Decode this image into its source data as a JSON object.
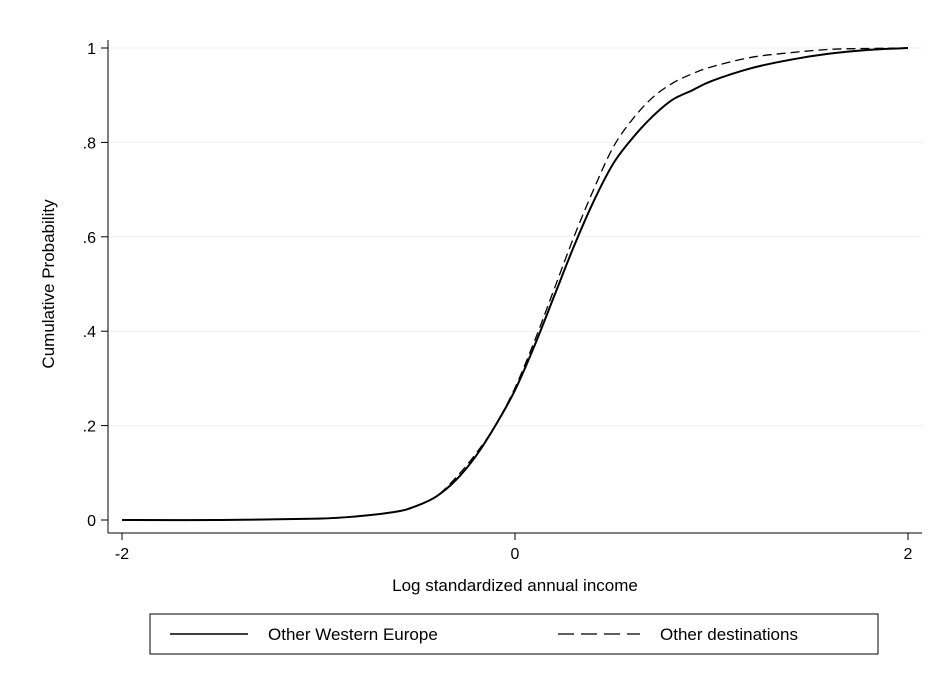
{
  "chart_data": {
    "type": "line",
    "xlabel": "Log standardized annual income",
    "ylabel": "Cumulative Probability",
    "xlim": [
      -2,
      2
    ],
    "ylim": [
      0,
      1
    ],
    "x_ticks": [
      {
        "value": -2,
        "label": "-2"
      },
      {
        "value": 0,
        "label": "0"
      },
      {
        "value": 2,
        "label": "2"
      }
    ],
    "y_ticks": [
      {
        "value": 0,
        "label": "0"
      },
      {
        "value": 0.2,
        "label": ".2"
      },
      {
        "value": 0.4,
        "label": ".4"
      },
      {
        "value": 0.6,
        "label": ".6"
      },
      {
        "value": 0.8,
        "label": ".8"
      },
      {
        "value": 1,
        "label": "1"
      }
    ],
    "grid": "horizontal",
    "legend_position": "bottom",
    "series": [
      {
        "name": "Other Western Europe",
        "style": "solid",
        "color": "#000000",
        "x": [
          -2.0,
          -1.5,
          -1.0,
          -0.8,
          -0.6,
          -0.5,
          -0.4,
          -0.3,
          -0.2,
          -0.1,
          0.0,
          0.1,
          0.2,
          0.3,
          0.4,
          0.5,
          0.6,
          0.7,
          0.8,
          0.9,
          1.0,
          1.2,
          1.4,
          1.6,
          1.8,
          2.0
        ],
        "y": [
          0.0,
          0.0,
          0.003,
          0.008,
          0.018,
          0.03,
          0.05,
          0.085,
          0.135,
          0.2,
          0.275,
          0.37,
          0.475,
          0.58,
          0.675,
          0.755,
          0.81,
          0.855,
          0.89,
          0.91,
          0.93,
          0.957,
          0.975,
          0.988,
          0.996,
          1.0
        ]
      },
      {
        "name": "Other destinations",
        "style": "dashed",
        "color": "#000000",
        "x": [
          -2.0,
          -1.5,
          -1.0,
          -0.8,
          -0.6,
          -0.5,
          -0.4,
          -0.3,
          -0.2,
          -0.1,
          0.0,
          0.1,
          0.2,
          0.3,
          0.4,
          0.5,
          0.6,
          0.7,
          0.8,
          0.9,
          1.0,
          1.2,
          1.4,
          1.6,
          1.8,
          2.0
        ],
        "y": [
          0.0,
          0.0,
          0.003,
          0.008,
          0.018,
          0.03,
          0.05,
          0.09,
          0.14,
          0.2,
          0.28,
          0.38,
          0.49,
          0.6,
          0.7,
          0.79,
          0.85,
          0.895,
          0.925,
          0.945,
          0.96,
          0.98,
          0.99,
          0.997,
          0.999,
          1.0
        ]
      }
    ],
    "colors": {
      "axis": "#000000",
      "grid": "#eaf1f3",
      "background": "#ffffff"
    }
  }
}
